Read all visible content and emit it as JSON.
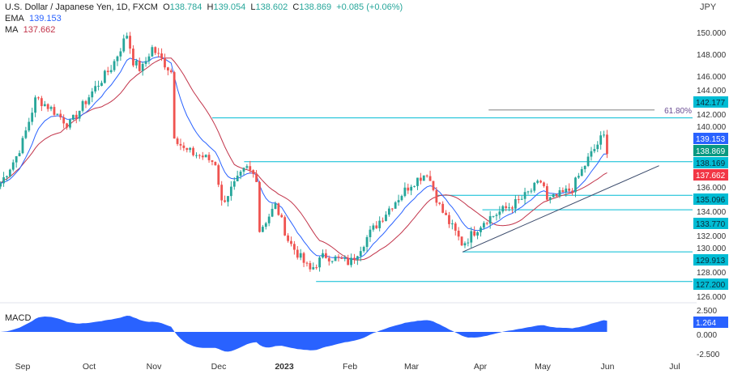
{
  "header": {
    "title": "U.S. Dollar / Japanese Yen, 1D, FXCM",
    "o_label": "O",
    "o": "138.784",
    "h_label": "H",
    "h": "139.054",
    "l_label": "L",
    "l": "138.602",
    "c_label": "C",
    "c": "138.869",
    "change": "+0.085 (+0.06%)"
  },
  "indicators": {
    "ema_label": "EMA",
    "ema": "139.153",
    "ma_label": "MA",
    "ma": "137.662",
    "macd_label": "MACD"
  },
  "colors": {
    "up": "#26a69a",
    "down": "#ef5350",
    "ema": "#2962ff",
    "ma": "#c2344a",
    "level": "#00bcd4",
    "macd": "#2962ff",
    "price_box": "#089981"
  },
  "chart_data": {
    "type": "candlestick",
    "symbol": "USDJPY",
    "currency": "JPY",
    "ylim": [
      125,
      151
    ],
    "y_ticks": [
      "150.000",
      "148.000",
      "146.000",
      "144.000",
      "142.000",
      "140.000",
      "136.000",
      "134.000",
      "132.000",
      "130.000",
      "128.000",
      "126.000"
    ],
    "x_ticks": [
      {
        "label": "Sep",
        "date": "2022-09-01"
      },
      {
        "label": "Oct",
        "date": "2022-10-01"
      },
      {
        "label": "Nov",
        "date": "2022-11-01"
      },
      {
        "label": "Dec",
        "date": "2022-12-01"
      },
      {
        "label": "2023",
        "date": "2023-01-01"
      },
      {
        "label": "Feb",
        "date": "2023-02-01"
      },
      {
        "label": "Mar",
        "date": "2023-03-01"
      },
      {
        "label": "Apr",
        "date": "2023-04-01"
      },
      {
        "label": "May",
        "date": "2023-05-01"
      },
      {
        "label": "Jun",
        "date": "2023-06-01"
      },
      {
        "label": "Jul",
        "date": "2023-07-01"
      }
    ],
    "close_path": [
      [
        "2022-08-22",
        136.2
      ],
      [
        "2022-08-29",
        138.6
      ],
      [
        "2022-09-01",
        140.0
      ],
      [
        "2022-09-07",
        144.0
      ],
      [
        "2022-09-14",
        143.0
      ],
      [
        "2022-09-22",
        141.5
      ],
      [
        "2022-10-03",
        144.7
      ],
      [
        "2022-10-12",
        146.9
      ],
      [
        "2022-10-20",
        150.2
      ],
      [
        "2022-10-21",
        147.6
      ],
      [
        "2022-10-26",
        146.5
      ],
      [
        "2022-10-31",
        148.6
      ],
      [
        "2022-11-09",
        146.4
      ],
      [
        "2022-11-10",
        140.8
      ],
      [
        "2022-11-15",
        139.2
      ],
      [
        "2022-11-24",
        138.6
      ],
      [
        "2022-11-30",
        138.0
      ],
      [
        "2022-12-02",
        134.3
      ],
      [
        "2022-12-14",
        137.6
      ],
      [
        "2022-12-19",
        136.7
      ],
      [
        "2022-12-20",
        131.8
      ],
      [
        "2022-12-28",
        134.2
      ],
      [
        "2023-01-03",
        130.9
      ],
      [
        "2023-01-13",
        128.2
      ],
      [
        "2023-01-20",
        129.6
      ],
      [
        "2023-02-01",
        128.9
      ],
      [
        "2023-02-10",
        131.6
      ],
      [
        "2023-02-20",
        134.2
      ],
      [
        "2023-03-01",
        136.2
      ],
      [
        "2023-03-08",
        137.2
      ],
      [
        "2023-03-14",
        133.9
      ],
      [
        "2023-03-24",
        130.6
      ],
      [
        "2023-04-03",
        132.8
      ],
      [
        "2023-04-20",
        134.6
      ],
      [
        "2023-05-01",
        136.5
      ],
      [
        "2023-05-03",
        134.5
      ],
      [
        "2023-05-15",
        135.7
      ],
      [
        "2023-05-23",
        138.5
      ],
      [
        "2023-05-30",
        140.6
      ],
      [
        "2023-06-02",
        138.869
      ]
    ],
    "ema_last": 139.153,
    "ma_last": 137.662,
    "levels": [
      {
        "value": 142.177,
        "label": "142.177",
        "from": "2022-11-28"
      },
      {
        "value": 138.169,
        "label": "138.169",
        "from": "2022-12-13"
      },
      {
        "value": 135.096,
        "label": "135.096",
        "from": "2023-03-12"
      },
      {
        "value": 133.77,
        "label": "133.770",
        "from": "2023-04-02"
      },
      {
        "value": 129.913,
        "label": "129.913",
        "from": "2023-03-24"
      },
      {
        "value": 127.2,
        "label": "127.200",
        "from": "2023-01-16"
      }
    ],
    "fib": {
      "label": "61.80%",
      "value": 142.9,
      "from": "2023-04-05",
      "to": "2023-06-22"
    },
    "trendline": [
      [
        "2023-03-24",
        129.9
      ],
      [
        "2023-06-24",
        137.8
      ]
    ],
    "macd": {
      "ylim": [
        -2.5,
        2.5
      ],
      "ticks": [
        "2.500",
        "0.000",
        "-2.500"
      ],
      "last": "1.264"
    }
  }
}
